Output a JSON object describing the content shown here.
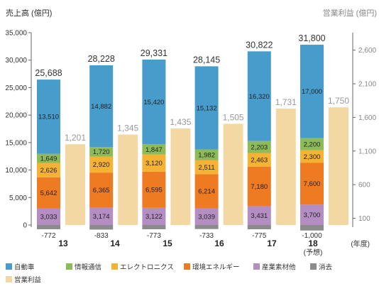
{
  "chart_data": {
    "type": "bar",
    "stacked": true,
    "grid": false,
    "legend_position": "bottom",
    "ylabel": "売上高 (億円)",
    "y2label": "営業利益 (億円)",
    "xlabel": "(年度)",
    "categories": [
      "13",
      "14",
      "15",
      "16",
      "17",
      "18"
    ],
    "category_notes": [
      "",
      "",
      "",
      "",
      "",
      "(予想)"
    ],
    "ylim": [
      0,
      35000
    ],
    "yticks": [
      0,
      5000,
      10000,
      15000,
      20000,
      25000,
      30000,
      35000
    ],
    "y2lim": [
      0,
      2860
    ],
    "y2ticks": [
      100,
      600,
      1100,
      1600,
      2100,
      2600
    ],
    "totals": [
      25688,
      28228,
      29331,
      28145,
      30822,
      31800
    ],
    "series": [
      {
        "name": "自動車",
        "color": "#479CCB",
        "values": [
          13510,
          14882,
          15420,
          15132,
          16320,
          17000
        ]
      },
      {
        "name": "情報通信",
        "color": "#8DBB58",
        "values": [
          1649,
          1720,
          1847,
          1982,
          2203,
          2200
        ]
      },
      {
        "name": "エレクトロニクス",
        "color": "#F5B233",
        "values": [
          2626,
          2920,
          3120,
          2511,
          2463,
          2300
        ]
      },
      {
        "name": "環境エネルギー",
        "color": "#EE7A21",
        "values": [
          5642,
          6365,
          6595,
          6214,
          7180,
          7600
        ]
      },
      {
        "name": "産業素材他",
        "color": "#B48EC2",
        "values": [
          3033,
          3174,
          3122,
          3039,
          3431,
          3700
        ]
      },
      {
        "name": "消去",
        "color": "#8B8B8B",
        "values": [
          -772,
          -833,
          -773,
          -733,
          -775,
          -1000
        ]
      }
    ],
    "secondary_series": {
      "name": "営業利益",
      "axis": "right",
      "color": "#F3D8A3",
      "values": [
        1201,
        1345,
        1435,
        1505,
        1731,
        1750
      ]
    }
  }
}
